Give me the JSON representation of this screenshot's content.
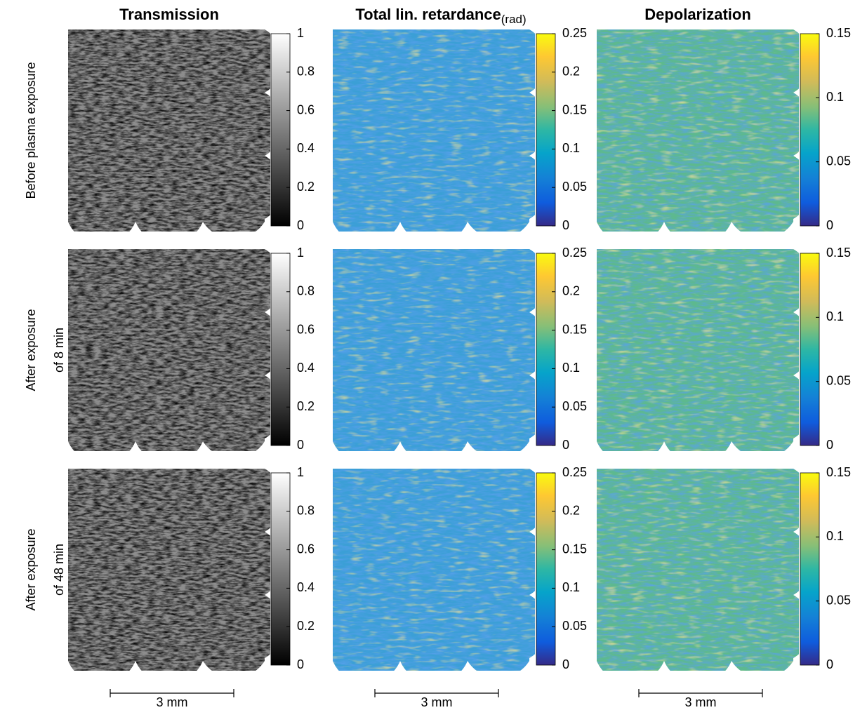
{
  "columns": [
    {
      "title": "Transmission",
      "colormap": "gray",
      "lim": [
        0,
        1
      ],
      "ticks": [
        0,
        0.2,
        0.4,
        0.6,
        0.8,
        1
      ]
    },
    {
      "title": "Total lin. retardance",
      "unit": "(rad)",
      "colormap": "parula",
      "lim": [
        0,
        0.25
      ],
      "ticks": [
        0,
        0.05,
        0.1,
        0.15,
        0.2,
        0.25
      ]
    },
    {
      "title": "Depolarization",
      "colormap": "parula",
      "lim": [
        0,
        0.15
      ],
      "ticks": [
        0,
        0.05,
        0.1,
        0.15
      ]
    }
  ],
  "rows": [
    {
      "label": [
        "Before plasma exposure"
      ]
    },
    {
      "label": [
        "After exposure",
        "of 8 min"
      ]
    },
    {
      "label": [
        "After exposure",
        "of 48 min"
      ]
    }
  ],
  "scale_bar": "3 mm"
}
